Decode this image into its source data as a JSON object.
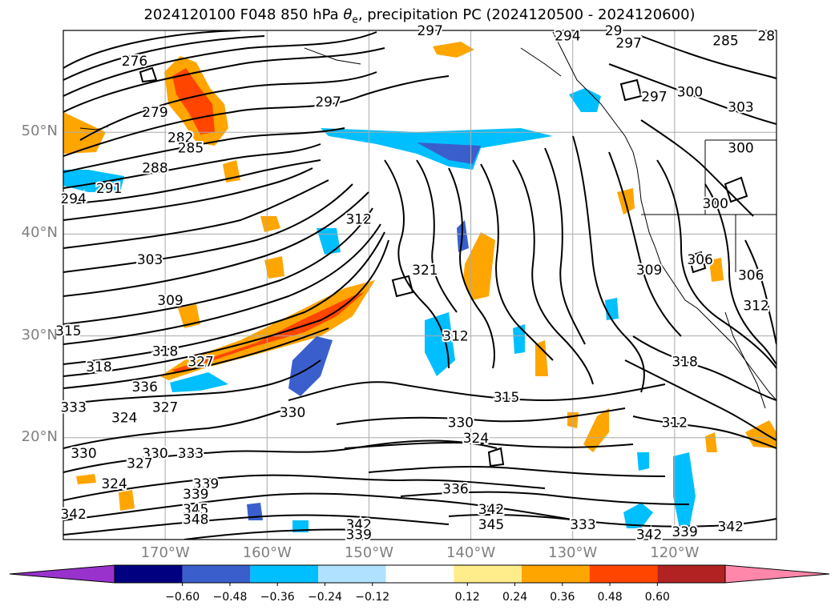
{
  "title": {
    "prefix": "2024120100 F048 850 hPa ",
    "var": "θ",
    "sub": "e",
    "suffix": ", precipitation PC (2024120500 - 2024120600)"
  },
  "map": {
    "lon_range": [
      -180,
      -110
    ],
    "lat_range": [
      10,
      60
    ],
    "lat_labels": [
      {
        "lat": 50,
        "text": "50°N"
      },
      {
        "lat": 40,
        "text": "40°N"
      },
      {
        "lat": 30,
        "text": "30°N"
      },
      {
        "lat": 20,
        "text": "20°N"
      }
    ],
    "lon_labels": [
      {
        "lon": -170,
        "text": "170°W"
      },
      {
        "lon": -160,
        "text": "160°W"
      },
      {
        "lon": -150,
        "text": "150°W"
      },
      {
        "lon": -140,
        "text": "140°W"
      },
      {
        "lon": -130,
        "text": "130°W"
      },
      {
        "lon": -120,
        "text": "120°W"
      }
    ],
    "contour_labels": [
      {
        "lon": -173,
        "lat": 57,
        "text": "276"
      },
      {
        "lon": -171,
        "lat": 52,
        "text": "279"
      },
      {
        "lon": -168.5,
        "lat": 49.5,
        "text": "282"
      },
      {
        "lon": -167.5,
        "lat": 48.5,
        "text": "285"
      },
      {
        "lon": -171,
        "lat": 46.5,
        "text": "288"
      },
      {
        "lon": -175.5,
        "lat": 44.5,
        "text": "291"
      },
      {
        "lon": -179,
        "lat": 43.5,
        "text": "294"
      },
      {
        "lon": -154,
        "lat": 53,
        "text": "297"
      },
      {
        "lon": -171.5,
        "lat": 37.5,
        "text": "303"
      },
      {
        "lon": -169.5,
        "lat": 33.5,
        "text": "309"
      },
      {
        "lon": -179.5,
        "lat": 30.5,
        "text": "315"
      },
      {
        "lon": -176.5,
        "lat": 27,
        "text": "318"
      },
      {
        "lon": -170,
        "lat": 28.5,
        "text": "318"
      },
      {
        "lon": -166.5,
        "lat": 27.5,
        "text": "327"
      },
      {
        "lon": -172,
        "lat": 25,
        "text": "336"
      },
      {
        "lon": -179,
        "lat": 23,
        "text": "333"
      },
      {
        "lon": -170,
        "lat": 23,
        "text": "327"
      },
      {
        "lon": -174,
        "lat": 22,
        "text": "324"
      },
      {
        "lon": -178,
        "lat": 18.5,
        "text": "330"
      },
      {
        "lon": -171,
        "lat": 18.5,
        "text": "330"
      },
      {
        "lon": -167.5,
        "lat": 18.5,
        "text": "333"
      },
      {
        "lon": -172.5,
        "lat": 17.5,
        "text": "327"
      },
      {
        "lon": -175,
        "lat": 15.5,
        "text": "324"
      },
      {
        "lon": -166,
        "lat": 15.5,
        "text": "339"
      },
      {
        "lon": -167,
        "lat": 14.5,
        "text": "339"
      },
      {
        "lon": -167,
        "lat": 13,
        "text": "345"
      },
      {
        "lon": -167,
        "lat": 12,
        "text": "348"
      },
      {
        "lon": -179,
        "lat": 12.5,
        "text": "342"
      },
      {
        "lon": -157.5,
        "lat": 22.5,
        "text": "330"
      },
      {
        "lon": -151,
        "lat": 41.5,
        "text": "312"
      },
      {
        "lon": -144.5,
        "lat": 36.5,
        "text": "321"
      },
      {
        "lon": -141.5,
        "lat": 30,
        "text": "312"
      },
      {
        "lon": -136.5,
        "lat": 24,
        "text": "315"
      },
      {
        "lon": -141,
        "lat": 21.5,
        "text": "330"
      },
      {
        "lon": -139.5,
        "lat": 20,
        "text": "324"
      },
      {
        "lon": -141.5,
        "lat": 15,
        "text": "336"
      },
      {
        "lon": -138,
        "lat": 13,
        "text": "342"
      },
      {
        "lon": -138,
        "lat": 11.5,
        "text": "345"
      },
      {
        "lon": -151,
        "lat": 11.5,
        "text": "342"
      },
      {
        "lon": -151,
        "lat": 10.5,
        "text": "339"
      },
      {
        "lon": -129,
        "lat": 11.5,
        "text": "333"
      },
      {
        "lon": -122.5,
        "lat": 10.5,
        "text": "342"
      },
      {
        "lon": -119,
        "lat": 10.8,
        "text": "339"
      },
      {
        "lon": -114.5,
        "lat": 11.3,
        "text": "342"
      },
      {
        "lon": -122.5,
        "lat": 36.5,
        "text": "309"
      },
      {
        "lon": -120,
        "lat": 21.5,
        "text": "312"
      },
      {
        "lon": -119,
        "lat": 27.5,
        "text": "318"
      },
      {
        "lon": -117.5,
        "lat": 37.5,
        "text": "306"
      },
      {
        "lon": -112.5,
        "lat": 36,
        "text": "306"
      },
      {
        "lon": -112,
        "lat": 33,
        "text": "312"
      },
      {
        "lon": -116,
        "lat": 43,
        "text": "300"
      },
      {
        "lon": -113.5,
        "lat": 48.5,
        "text": "300"
      },
      {
        "lon": -122,
        "lat": 53.5,
        "text": "297"
      },
      {
        "lon": -118.5,
        "lat": 54,
        "text": "300"
      },
      {
        "lon": -113.5,
        "lat": 52.5,
        "text": "303"
      },
      {
        "lon": -115,
        "lat": 59,
        "text": "285"
      },
      {
        "lon": -111,
        "lat": 59.5,
        "text": "28"
      },
      {
        "lon": -130.5,
        "lat": 59.5,
        "text": "294"
      },
      {
        "lon": -126,
        "lat": 60,
        "text": "29"
      },
      {
        "lon": -124.5,
        "lat": 58.8,
        "text": "297"
      },
      {
        "lon": -144,
        "lat": 60,
        "text": "297"
      }
    ]
  },
  "colorbar": {
    "colors": [
      "#9932cc",
      "#000080",
      "#3a5fcd",
      "#00bfff",
      "#b0e2ff",
      "#ffffff",
      "#ffec8b",
      "#ffa500",
      "#ff4500",
      "#b22222",
      "#ff88aa"
    ],
    "tick_labels": [
      "−0.60",
      "−0.48",
      "−0.36",
      "−0.24",
      "−0.12",
      "0.12",
      "0.24",
      "0.36",
      "0.48",
      "0.60"
    ],
    "range": [
      -0.6,
      0.6
    ]
  },
  "colors": {
    "grid": "#aaaaaa",
    "contour": "#000000",
    "label": "#808080"
  }
}
